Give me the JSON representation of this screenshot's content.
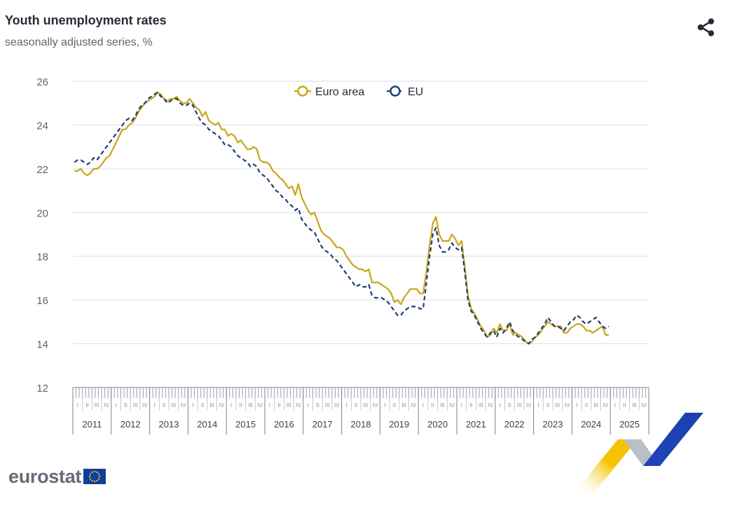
{
  "header": {
    "title": "Youth unemployment rates",
    "subtitle": "seasonally adjusted series, %"
  },
  "share": {
    "icon": "share-icon"
  },
  "branding": {
    "wordmark": "eurostat",
    "flag_icon": "eu-flag-icon"
  },
  "colors": {
    "euro_area": "#c8a617",
    "eu": "#1f3b78",
    "grid": "#d9dde8",
    "axis_text": "#5e636e"
  },
  "chart_data": {
    "type": "line",
    "title": "Youth unemployment rates",
    "subtitle": "seasonally adjusted series, %",
    "xlabel": "",
    "ylabel": "",
    "ylim": [
      12,
      26
    ],
    "yticks": [
      12,
      14,
      16,
      18,
      20,
      22,
      24,
      26
    ],
    "x_axis": {
      "years": [
        "2011",
        "2012",
        "2013",
        "2014",
        "2015",
        "2016",
        "2017",
        "2018",
        "2019",
        "2020",
        "2021",
        "2022",
        "2023",
        "2024",
        "2025"
      ],
      "quarters": [
        "I",
        "II",
        "III",
        "IV"
      ],
      "start": "2011-01",
      "end": "2025-12",
      "frequency": "monthly"
    },
    "legend": {
      "position": "top-center"
    },
    "grid": true,
    "series": [
      {
        "name": "Euro area",
        "style": "solid",
        "x_start": "2011-01",
        "values": [
          21.9,
          21.9,
          22.0,
          21.8,
          21.7,
          21.8,
          22.0,
          22.0,
          22.1,
          22.3,
          22.5,
          22.6,
          22.9,
          23.2,
          23.5,
          23.8,
          23.8,
          24.0,
          24.1,
          24.3,
          24.6,
          24.8,
          25.0,
          25.1,
          25.2,
          25.3,
          25.5,
          25.4,
          25.2,
          25.1,
          25.2,
          25.2,
          25.3,
          25.1,
          25.0,
          25.0,
          25.2,
          25.0,
          24.8,
          24.7,
          24.4,
          24.6,
          24.2,
          24.1,
          24.0,
          24.1,
          23.8,
          23.8,
          23.5,
          23.6,
          23.5,
          23.2,
          23.3,
          23.1,
          22.9,
          22.9,
          23.0,
          22.9,
          22.4,
          22.3,
          22.3,
          22.2,
          21.9,
          21.8,
          21.6,
          21.5,
          21.3,
          21.1,
          21.2,
          20.8,
          21.3,
          20.7,
          20.4,
          20.1,
          19.9,
          20.0,
          19.6,
          19.2,
          19.0,
          18.9,
          18.8,
          18.6,
          18.4,
          18.4,
          18.3,
          18.0,
          17.8,
          17.6,
          17.5,
          17.4,
          17.4,
          17.3,
          17.4,
          16.8,
          16.8,
          16.8,
          16.7,
          16.6,
          16.5,
          16.3,
          15.9,
          16.0,
          15.8,
          16.1,
          16.3,
          16.5,
          16.5,
          16.5,
          16.3,
          16.3,
          17.3,
          18.5,
          19.5,
          19.8,
          19.0,
          18.7,
          18.7,
          18.7,
          19.0,
          18.8,
          18.5,
          18.7,
          17.5,
          16.2,
          15.6,
          15.4,
          15.1,
          14.8,
          14.6,
          14.3,
          14.4,
          14.7,
          14.5,
          14.9,
          14.6,
          14.6,
          14.9,
          14.4,
          14.5,
          14.4,
          14.3,
          14.1,
          14.0,
          14.1,
          14.3,
          14.4,
          14.6,
          14.8,
          15.0,
          14.9,
          14.8,
          14.8,
          14.8,
          14.5,
          14.5,
          14.7,
          14.8,
          14.9,
          14.9,
          14.8,
          14.6,
          14.6,
          14.5,
          14.6,
          14.7,
          14.8,
          14.4,
          14.4
        ]
      },
      {
        "name": "EU",
        "style": "dashed",
        "x_start": "2011-01",
        "values": [
          22.3,
          22.4,
          22.4,
          22.3,
          22.2,
          22.3,
          22.5,
          22.4,
          22.6,
          22.8,
          23.0,
          23.2,
          23.4,
          23.6,
          23.8,
          24.0,
          24.2,
          24.3,
          24.2,
          24.4,
          24.7,
          24.9,
          25.0,
          25.2,
          25.3,
          25.4,
          25.5,
          25.3,
          25.2,
          25.0,
          25.1,
          25.2,
          25.2,
          25.0,
          24.9,
          24.9,
          25.0,
          24.9,
          24.6,
          24.3,
          24.1,
          24.0,
          23.8,
          23.7,
          23.6,
          23.5,
          23.3,
          23.1,
          23.1,
          23.0,
          22.8,
          22.6,
          22.5,
          22.4,
          22.3,
          22.1,
          22.2,
          22.1,
          21.8,
          21.7,
          21.6,
          21.4,
          21.2,
          21.0,
          20.9,
          20.7,
          20.6,
          20.4,
          20.3,
          20.1,
          20.2,
          19.7,
          19.5,
          19.3,
          19.2,
          19.1,
          18.8,
          18.5,
          18.3,
          18.2,
          18.1,
          17.9,
          17.8,
          17.6,
          17.4,
          17.2,
          17.0,
          16.8,
          16.6,
          16.7,
          16.6,
          16.6,
          16.7,
          16.2,
          16.1,
          16.1,
          16.1,
          16.0,
          15.9,
          15.7,
          15.5,
          15.3,
          15.3,
          15.5,
          15.6,
          15.7,
          15.7,
          15.7,
          15.6,
          15.6,
          16.8,
          18.0,
          19.0,
          19.3,
          18.5,
          18.2,
          18.2,
          18.3,
          18.6,
          18.4,
          18.3,
          18.4,
          17.3,
          16.0,
          15.5,
          15.3,
          15.0,
          14.7,
          14.5,
          14.3,
          14.5,
          14.6,
          14.3,
          14.7,
          14.5,
          14.7,
          15.0,
          14.6,
          14.4,
          14.3,
          14.2,
          14.1,
          14.0,
          14.2,
          14.3,
          14.5,
          14.7,
          14.9,
          15.2,
          15.0,
          14.8,
          14.8,
          14.7,
          14.6,
          14.8,
          15.0,
          15.1,
          15.3,
          15.2,
          15.0,
          14.9,
          15.0,
          15.1,
          15.2,
          15.0,
          14.8,
          14.7,
          14.8
        ]
      }
    ]
  }
}
